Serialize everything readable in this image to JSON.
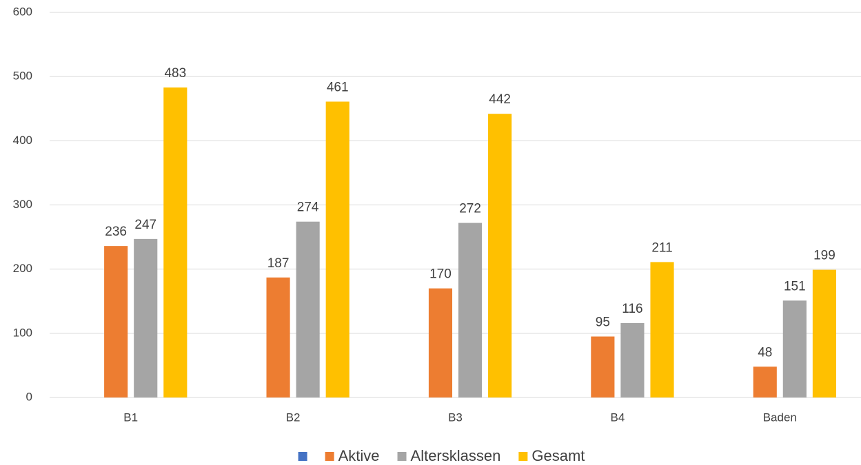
{
  "chart_data": {
    "type": "bar",
    "categories": [
      "B1",
      "B2",
      "B3",
      "B4",
      "Baden"
    ],
    "series": [
      {
        "name": null,
        "color": "#4472c4",
        "values": [
          null,
          null,
          null,
          null,
          null
        ]
      },
      {
        "name": "Aktive",
        "color": "#ed7d31",
        "values": [
          236,
          187,
          170,
          95,
          48
        ]
      },
      {
        "name": "Altersklassen",
        "color": "#a5a5a5",
        "values": [
          247,
          274,
          272,
          116,
          151
        ]
      },
      {
        "name": "Gesamt",
        "color": "#ffc000",
        "values": [
          483,
          461,
          442,
          211,
          199
        ]
      }
    ],
    "ylim": [
      0,
      600
    ],
    "yticks": [
      0,
      100,
      200,
      300,
      400,
      500,
      600
    ],
    "grid": true,
    "legend": "bottom"
  }
}
